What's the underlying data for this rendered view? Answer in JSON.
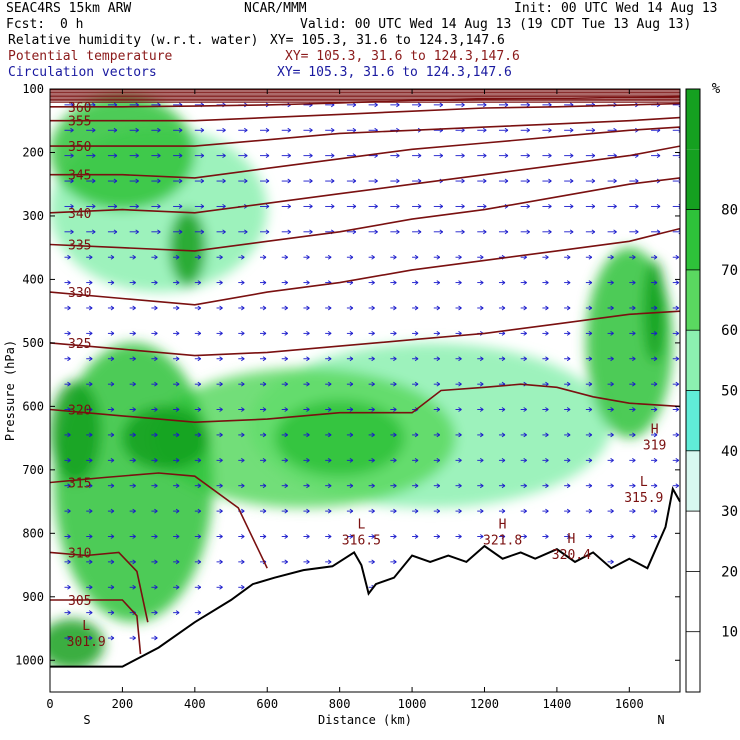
{
  "header": {
    "title": "SEAC4RS 15km ARW",
    "center": "NCAR/MMM",
    "init": "Init: 00 UTC Wed 14 Aug 13",
    "fcst_label": "Fcst:",
    "fcst_value": "0 h",
    "valid": "Valid: 00 UTC Wed 14 Aug 13 (19 CDT Tue 13 Aug 13)",
    "fields": [
      {
        "name": "Relative humidity (w.r.t. water)",
        "xy": "XY= 105.3, 31.6 to 124.3,147.6",
        "color": "#000000"
      },
      {
        "name": "Potential temperature",
        "xy": "XY= 105.3, 31.6 to 124.3,147.6",
        "color": "#8b1a1a"
      },
      {
        "name": "Circulation vectors",
        "xy": "XY= 105.3, 31.6 to 124.3,147.6",
        "color": "#1a1aa0"
      }
    ]
  },
  "colors": {
    "theta": "#7a1010",
    "vectors": "#1a1acc",
    "terrain": "#000000",
    "rh_scale": [
      "#ffffff",
      "#ffffff",
      "#ffffff",
      "#d8f8f0",
      "#60ecd8",
      "#8cf0b0",
      "#5ad860",
      "#2ec23a",
      "#15a020"
    ]
  },
  "chart_data": {
    "type": "cross-section",
    "xlabel": "Distance (km)",
    "ylabel": "Pressure (hPa)",
    "xlim": [
      0,
      1740
    ],
    "ylim": [
      1050,
      100
    ],
    "x_ticks": [
      0,
      200,
      400,
      600,
      800,
      1000,
      1200,
      1400,
      1600
    ],
    "y_ticks": [
      100,
      200,
      300,
      400,
      500,
      600,
      700,
      800,
      900,
      1000
    ],
    "x_end_labels": {
      "left": "S",
      "right": "N"
    },
    "colorbar": {
      "unit": "%",
      "ticks": [
        10,
        20,
        30,
        40,
        50,
        60,
        70,
        80
      ],
      "levels": [
        0,
        10,
        20,
        30,
        40,
        50,
        60,
        70,
        80,
        90
      ]
    },
    "theta_contours": [
      {
        "level": 305,
        "label": "305",
        "points": [
          [
            0,
            905
          ],
          [
            100,
            905
          ],
          [
            200,
            905
          ],
          [
            240,
            930
          ],
          [
            250,
            990
          ]
        ]
      },
      {
        "level": 310,
        "label": "310",
        "points": [
          [
            0,
            830
          ],
          [
            100,
            835
          ],
          [
            190,
            830
          ],
          [
            240,
            860
          ],
          [
            270,
            940
          ]
        ]
      },
      {
        "level": 315,
        "label": "315",
        "points": [
          [
            0,
            720
          ],
          [
            150,
            712
          ],
          [
            300,
            705
          ],
          [
            400,
            710
          ],
          [
            520,
            760
          ],
          [
            600,
            855
          ]
        ]
      },
      {
        "level": 320,
        "label": "320",
        "points": [
          [
            0,
            605
          ],
          [
            200,
            615
          ],
          [
            400,
            625
          ],
          [
            600,
            620
          ],
          [
            800,
            610
          ],
          [
            1000,
            610
          ],
          [
            1080,
            575
          ],
          [
            1200,
            570
          ],
          [
            1300,
            565
          ],
          [
            1400,
            570
          ],
          [
            1500,
            585
          ],
          [
            1600,
            595
          ],
          [
            1740,
            600
          ]
        ]
      },
      {
        "level": 325,
        "label": "325",
        "points": [
          [
            0,
            500
          ],
          [
            200,
            510
          ],
          [
            400,
            520
          ],
          [
            600,
            515
          ],
          [
            800,
            505
          ],
          [
            1000,
            495
          ],
          [
            1200,
            485
          ],
          [
            1400,
            470
          ],
          [
            1600,
            455
          ],
          [
            1740,
            450
          ]
        ]
      },
      {
        "level": 330,
        "label": "330",
        "points": [
          [
            0,
            420
          ],
          [
            200,
            430
          ],
          [
            400,
            440
          ],
          [
            600,
            420
          ],
          [
            800,
            405
          ],
          [
            1000,
            385
          ],
          [
            1200,
            370
          ],
          [
            1400,
            355
          ],
          [
            1600,
            340
          ],
          [
            1740,
            320
          ]
        ]
      },
      {
        "level": 335,
        "label": "335",
        "points": [
          [
            0,
            345
          ],
          [
            200,
            350
          ],
          [
            400,
            355
          ],
          [
            600,
            340
          ],
          [
            800,
            325
          ],
          [
            1000,
            305
          ],
          [
            1200,
            290
          ],
          [
            1400,
            270
          ],
          [
            1600,
            250
          ],
          [
            1740,
            240
          ]
        ]
      },
      {
        "level": 340,
        "label": "340",
        "points": [
          [
            0,
            295
          ],
          [
            200,
            290
          ],
          [
            400,
            295
          ],
          [
            600,
            280
          ],
          [
            800,
            265
          ],
          [
            1000,
            250
          ],
          [
            1200,
            235
          ],
          [
            1400,
            220
          ],
          [
            1600,
            205
          ],
          [
            1740,
            190
          ]
        ]
      },
      {
        "level": 345,
        "label": "345",
        "points": [
          [
            0,
            235
          ],
          [
            200,
            235
          ],
          [
            400,
            240
          ],
          [
            600,
            225
          ],
          [
            800,
            210
          ],
          [
            1000,
            195
          ],
          [
            1200,
            185
          ],
          [
            1400,
            175
          ],
          [
            1600,
            165
          ],
          [
            1740,
            160
          ]
        ]
      },
      {
        "level": 350,
        "label": "350",
        "points": [
          [
            0,
            190
          ],
          [
            200,
            190
          ],
          [
            400,
            190
          ],
          [
            600,
            180
          ],
          [
            800,
            170
          ],
          [
            1000,
            165
          ],
          [
            1200,
            160
          ],
          [
            1400,
            155
          ],
          [
            1600,
            150
          ],
          [
            1740,
            145
          ]
        ]
      },
      {
        "level": 355,
        "label": "355",
        "points": [
          [
            0,
            150
          ],
          [
            200,
            150
          ],
          [
            400,
            150
          ],
          [
            600,
            145
          ],
          [
            800,
            140
          ],
          [
            1000,
            135
          ],
          [
            1200,
            130
          ],
          [
            1400,
            128
          ],
          [
            1600,
            125
          ],
          [
            1740,
            123
          ]
        ]
      },
      {
        "level": 360,
        "label": "360",
        "points": [
          [
            0,
            128
          ],
          [
            200,
            128
          ],
          [
            400,
            127
          ],
          [
            600,
            125
          ],
          [
            800,
            122
          ],
          [
            1000,
            118
          ],
          [
            1200,
            116
          ],
          [
            1400,
            115
          ],
          [
            1600,
            113
          ],
          [
            1740,
            112
          ]
        ]
      }
    ],
    "extrema_labels": [
      {
        "kind": "L",
        "value": "301.9",
        "x": 100,
        "p": 965
      },
      {
        "kind": "L",
        "value": "316.5",
        "x": 860,
        "p": 805
      },
      {
        "kind": "H",
        "value": "321.8",
        "x": 1250,
        "p": 805
      },
      {
        "kind": "H",
        "value": "320.4",
        "x": 1440,
        "p": 828
      },
      {
        "kind": "H",
        "value": "319",
        "x": 1670,
        "p": 655
      },
      {
        "kind": "L",
        "value": "315.9",
        "x": 1640,
        "p": 738
      }
    ],
    "terrain": [
      [
        0,
        1010
      ],
      [
        200,
        1010
      ],
      [
        300,
        980
      ],
      [
        400,
        940
      ],
      [
        500,
        905
      ],
      [
        560,
        880
      ],
      [
        620,
        870
      ],
      [
        700,
        858
      ],
      [
        780,
        852
      ],
      [
        840,
        830
      ],
      [
        860,
        850
      ],
      [
        880,
        895
      ],
      [
        900,
        880
      ],
      [
        950,
        870
      ],
      [
        1000,
        835
      ],
      [
        1050,
        845
      ],
      [
        1100,
        835
      ],
      [
        1150,
        845
      ],
      [
        1200,
        820
      ],
      [
        1250,
        840
      ],
      [
        1300,
        830
      ],
      [
        1340,
        840
      ],
      [
        1400,
        825
      ],
      [
        1450,
        845
      ],
      [
        1500,
        830
      ],
      [
        1550,
        855
      ],
      [
        1600,
        840
      ],
      [
        1650,
        855
      ],
      [
        1700,
        790
      ],
      [
        1720,
        730
      ],
      [
        1740,
        750
      ]
    ],
    "rh_blobs": [
      {
        "rh": 85,
        "x": 380,
        "p": 350,
        "rx": 50,
        "rp": 60
      },
      {
        "rh": 85,
        "x": 70,
        "p": 640,
        "rx": 70,
        "rp": 80
      },
      {
        "rh": 85,
        "x": 320,
        "p": 650,
        "rx": 120,
        "rp": 50
      },
      {
        "rh": 85,
        "x": 60,
        "p": 975,
        "rx": 90,
        "rp": 40
      },
      {
        "rh": 85,
        "x": 1670,
        "p": 450,
        "rx": 30,
        "rp": 80
      },
      {
        "rh": 75,
        "x": 230,
        "p": 720,
        "rx": 220,
        "rp": 220
      },
      {
        "rh": 75,
        "x": 800,
        "p": 650,
        "rx": 180,
        "rp": 60
      },
      {
        "rh": 75,
        "x": 1600,
        "p": 500,
        "rx": 120,
        "rp": 150
      },
      {
        "rh": 65,
        "x": 700,
        "p": 650,
        "rx": 420,
        "rp": 110
      },
      {
        "rh": 55,
        "x": 1050,
        "p": 630,
        "rx": 500,
        "rp": 130
      },
      {
        "rh": 75,
        "x": 200,
        "p": 200,
        "rx": 200,
        "rp": 90
      },
      {
        "rh": 55,
        "x": 300,
        "p": 290,
        "rx": 300,
        "rp": 130
      }
    ]
  }
}
